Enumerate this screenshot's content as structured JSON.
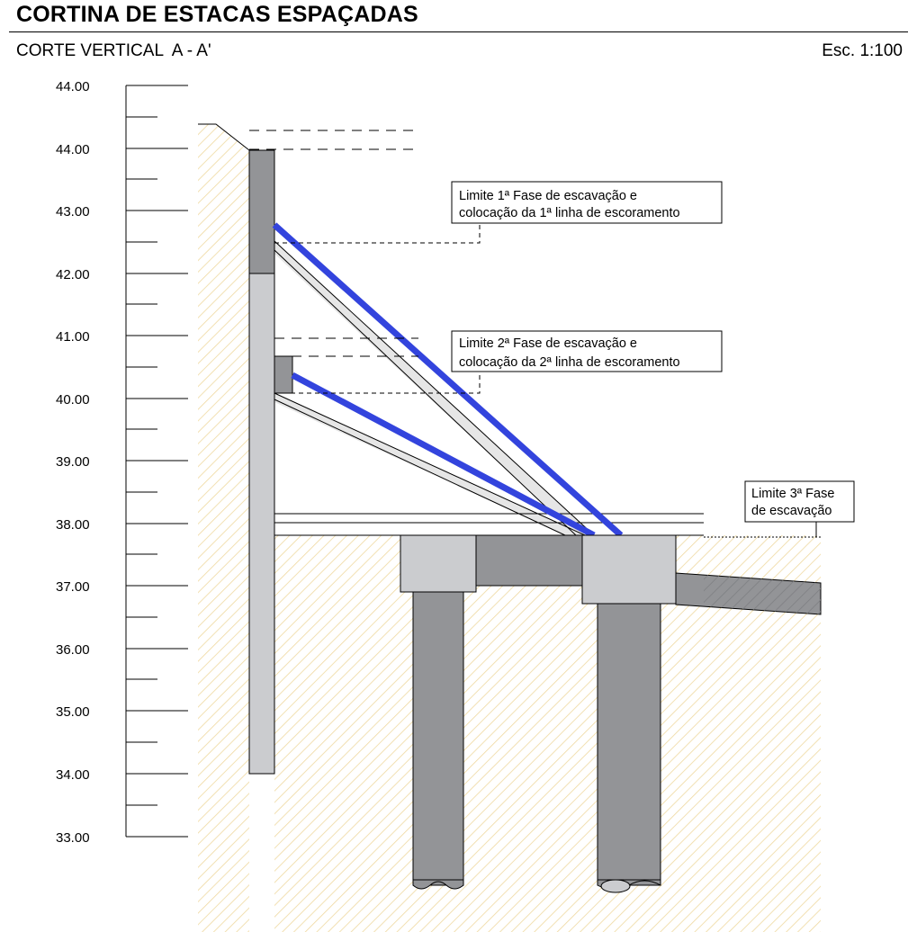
{
  "header": {
    "title": "CORTINA DE ESTACAS ESPAÇADAS",
    "subtitle": "CORTE VERTICAL  A - A'",
    "scale": "Esc. 1:100"
  },
  "elevation_axis": {
    "tick_labels": [
      "44.00",
      "44.00",
      "43.00",
      "42.00",
      "41.00",
      "40.00",
      "39.00",
      "38.00",
      "37.00",
      "36.00",
      "35.00",
      "34.00",
      "33.00"
    ]
  },
  "annotations": {
    "phase1": {
      "line1": "Limite 1ª Fase de escavação e",
      "line2": "colocação da 1ª linha de escoramento"
    },
    "phase2": {
      "line1": "Limite 2ª Fase de escavação e",
      "line2": "colocação da 2ª linha de escoramento"
    },
    "phase3": {
      "line1": "Limite 3ª Fase",
      "line2": "de escavação"
    }
  },
  "colors": {
    "strut_blue": "#3344dd",
    "soil_hatch": "#efd9a0",
    "pile_dark": "#939497",
    "pile_light": "#cbcccf"
  }
}
